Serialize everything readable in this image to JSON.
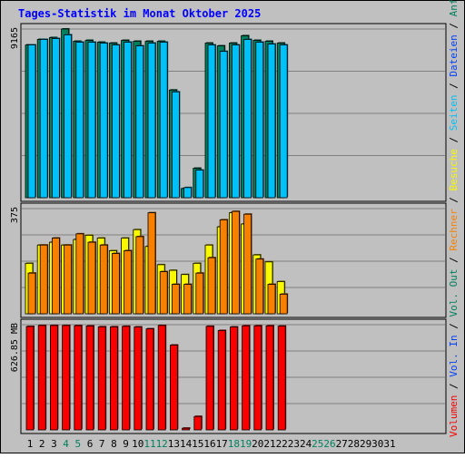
{
  "chart_data": {
    "type": "bar",
    "title": "Tages-Statistik im Monat Oktober 2025",
    "days": [
      "1",
      "2",
      "3",
      "4",
      "5",
      "6",
      "7",
      "8",
      "9",
      "10",
      "11",
      "12",
      "13",
      "14",
      "15",
      "16",
      "17",
      "18",
      "19",
      "20",
      "21",
      "22",
      "23",
      "24",
      "25",
      "26",
      "27",
      "28",
      "29",
      "30",
      "31"
    ],
    "weekend_days": [
      "4",
      "5",
      "11",
      "12",
      "18",
      "19",
      "25",
      "26"
    ],
    "panels": [
      {
        "ymax_label": "9165",
        "ymax": 9165,
        "series": [
          {
            "name": "Anfragen",
            "color": "#00805c",
            "values": [
              8300,
              8600,
              8700,
              9165,
              8500,
              8550,
              8450,
              8400,
              8550,
              8500,
              8500,
              8500,
              5850,
              500,
              1600,
              8400,
              8250,
              8400,
              8800,
              8550,
              8500,
              8400,
              0,
              0,
              0,
              0,
              0,
              0,
              0,
              0,
              0
            ]
          },
          {
            "name": "Seiten",
            "color": "#00c0f8",
            "values": [
              8300,
              8600,
              8650,
              8850,
              8450,
              8450,
              8400,
              8300,
              8450,
              8250,
              8400,
              8450,
              5750,
              550,
              1500,
              8300,
              7950,
              8300,
              8600,
              8450,
              8350,
              8300,
              0,
              0,
              0,
              0,
              0,
              0,
              0,
              0,
              0
            ]
          }
        ]
      },
      {
        "ymax_label": "375",
        "ymax": 375,
        "series": [
          {
            "name": "Besuche",
            "color": "#f8f800",
            "values": [
              180,
              245,
              255,
              245,
              265,
              280,
              270,
              225,
              270,
              300,
              240,
              175,
              155,
              140,
              180,
              245,
              310,
              360,
              320,
              210,
              185,
              115,
              0,
              0,
              0,
              0,
              0,
              0,
              0,
              0,
              0
            ]
          },
          {
            "name": "Rechner",
            "color": "#f88000",
            "values": [
              145,
              245,
              270,
              245,
              285,
              255,
              245,
              215,
              225,
              275,
              360,
              150,
              105,
              105,
              145,
              200,
              335,
              365,
              355,
              195,
              105,
              70,
              0,
              0,
              0,
              0,
              0,
              0,
              0,
              0,
              0
            ]
          }
        ]
      },
      {
        "ymax_label": "626.85 MB",
        "ymax": 626.85,
        "series": [
          {
            "name": "Volumen",
            "color": "#f80000",
            "values": [
              616,
              622,
              622,
              622,
              621,
              619,
              614,
              614,
              617,
              613,
              602,
              622,
              505,
              10,
              80,
              617,
              592,
              613,
              620,
              620,
              620,
              618,
              0,
              0,
              0,
              0,
              0,
              0,
              0,
              0,
              0
            ]
          }
        ]
      }
    ],
    "legend": [
      {
        "label": "Anfragen",
        "color": "#00805c"
      },
      {
        "label": "Dateien",
        "color": "#0040ff"
      },
      {
        "label": "Seiten",
        "color": "#00c0f8"
      },
      {
        "label": "Besuche",
        "color": "#f8f800"
      },
      {
        "label": "Rechner",
        "color": "#f88000"
      },
      {
        "label": "Vol. Out",
        "color": "#00805c"
      },
      {
        "label": "Vol. In",
        "color": "#0040ff"
      },
      {
        "label": "Volumen",
        "color": "#f80000"
      }
    ]
  }
}
